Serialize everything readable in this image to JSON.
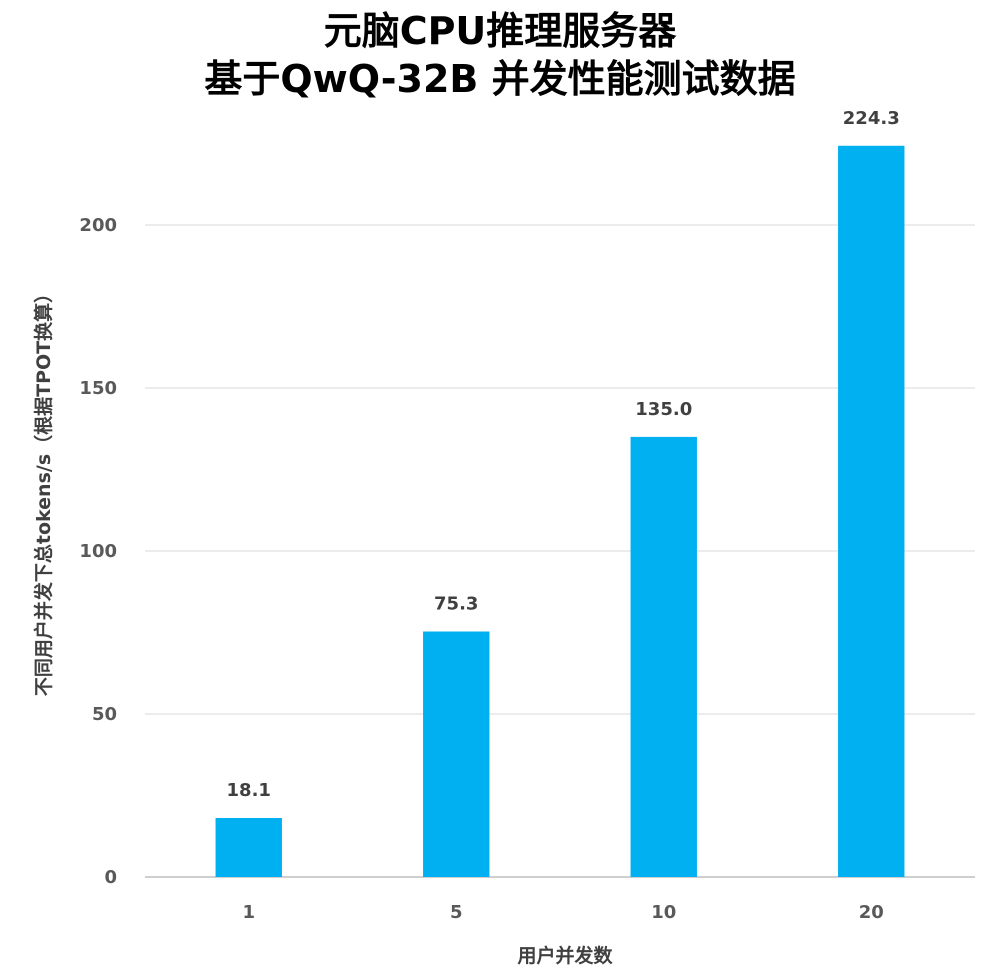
{
  "chart_data": {
    "type": "bar",
    "title": "元脑CPU推理服务器",
    "subtitle": "基于QwQ-32B 并发性能测试数据",
    "xlabel": "用户并发数",
    "ylabel": "不同用户并发下总tokens/s（根据TPOT换算）",
    "categories": [
      "1",
      "5",
      "10",
      "20"
    ],
    "values": [
      18.1,
      75.3,
      135.0,
      224.3
    ],
    "data_labels": [
      "18.1",
      "75.3",
      "135.0",
      "224.3"
    ],
    "ylim": [
      0,
      250
    ],
    "yticks": [
      0,
      50,
      100,
      150,
      200
    ],
    "ytick_labels": [
      "0",
      "50",
      "100",
      "150",
      "200"
    ],
    "grid": true,
    "legend": "none",
    "bar_color": "#00b0f0"
  }
}
